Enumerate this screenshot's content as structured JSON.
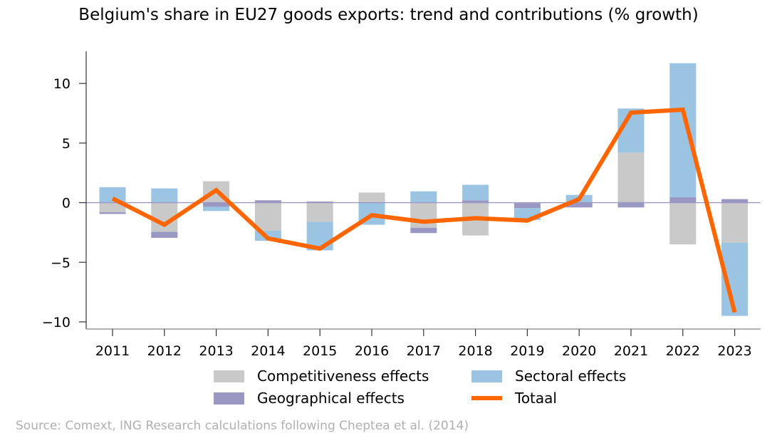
{
  "chart_data": {
    "type": "bar",
    "stacked": true,
    "title": "Belgium's share in EU27 goods exports: trend and contributions (% growth)",
    "xlabel": "",
    "ylabel": "",
    "categories": [
      "2011",
      "2012",
      "2013",
      "2014",
      "2015",
      "2016",
      "2017",
      "2018",
      "2019",
      "2020",
      "2021",
      "2022",
      "2023"
    ],
    "ylim": [
      -10.6,
      12.7
    ],
    "yticks": [
      -10,
      -5,
      0,
      5,
      10
    ],
    "ytick_labels": [
      "−10",
      "−5",
      "0",
      "5",
      "10"
    ],
    "grid": false,
    "zero_line": true,
    "series": [
      {
        "name": "Competitiveness effects",
        "kind": "bar",
        "color": "#c9c9c9",
        "values": [
          -0.8,
          -2.45,
          1.8,
          -2.35,
          -1.6,
          0.85,
          -2.1,
          -2.75,
          -0.05,
          0.0,
          4.2,
          -3.5,
          -3.35
        ]
      },
      {
        "name": "Geographical effects",
        "kind": "bar",
        "color": "#9a97c3",
        "values": [
          -0.15,
          -0.5,
          -0.35,
          0.2,
          0.1,
          0.0,
          -0.45,
          0.2,
          -0.4,
          -0.4,
          -0.4,
          0.45,
          0.3
        ]
      },
      {
        "name": "Sectoral effects",
        "kind": "bar",
        "color": "#9bc4e2",
        "values": [
          1.3,
          1.2,
          -0.35,
          -0.85,
          -2.4,
          -1.85,
          0.95,
          1.3,
          -1.0,
          0.65,
          3.7,
          11.25,
          -6.15
        ]
      },
      {
        "name": "Totaal",
        "kind": "line",
        "color": "#ff6600",
        "values": [
          0.35,
          -1.85,
          1.05,
          -3.0,
          -3.85,
          -1.05,
          -1.6,
          -1.3,
          -1.5,
          0.3,
          7.55,
          7.8,
          -9.2
        ]
      }
    ],
    "legend": {
      "placement": "bottom-center",
      "columns": 2,
      "entries": [
        "Competitiveness effects",
        "Sectoral effects",
        "Geographical effects",
        "Totaal"
      ]
    }
  },
  "source": "Source: Comext, ING Research calculations following Cheptea et al. (2014)"
}
